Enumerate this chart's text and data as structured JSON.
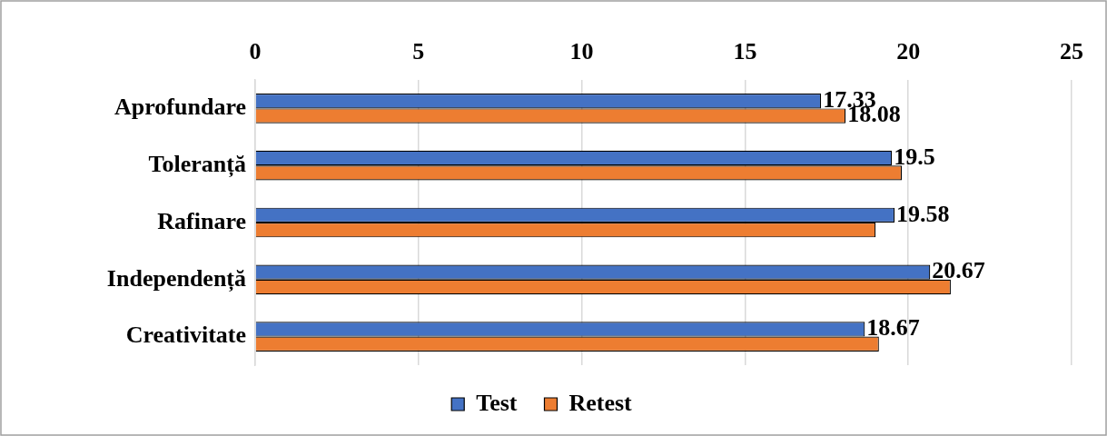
{
  "chart_data": {
    "type": "bar",
    "orientation": "horizontal",
    "categories": [
      "Aprofundare",
      "Toleranță",
      "Rafinare",
      "Independență",
      "Creativitate"
    ],
    "series": [
      {
        "name": "Test",
        "color": "#4472c4",
        "values": [
          17.33,
          19.5,
          19.58,
          20.67,
          18.67
        ],
        "value_labels": [
          "17.33",
          "19.5",
          "19.58",
          "20.67",
          "18.67"
        ]
      },
      {
        "name": "Retest",
        "color": "#ed7d31",
        "values": [
          18.08,
          19.8,
          19.0,
          21.3,
          19.1
        ],
        "value_labels": [
          "18.08",
          null,
          null,
          null,
          null
        ]
      }
    ],
    "xlim": [
      0,
      25
    ],
    "xticks": [
      0,
      5,
      10,
      15,
      20,
      25
    ],
    "grid": "x",
    "legend": "bottom"
  }
}
